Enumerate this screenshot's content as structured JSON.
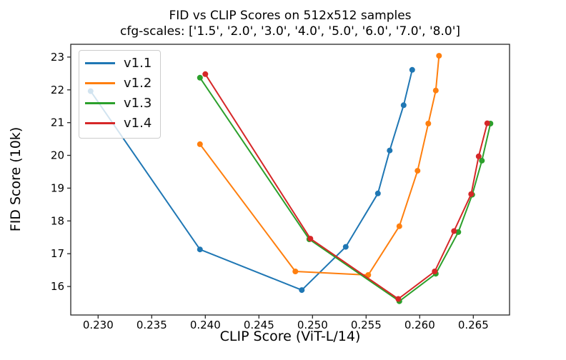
{
  "figure": {
    "title": "FID vs CLIP Scores on 512x512 samples",
    "subtitle": "cfg-scales: ['1.5', '2.0', '3.0', '4.0', '5.0', '6.0', '7.0', '8.0']",
    "xlabel": "CLIP Score (ViT-L/14)",
    "ylabel": "FID Score (10k)"
  },
  "chart_data": {
    "type": "line",
    "title": "FID vs CLIP Scores on 512x512 samples",
    "subtitle": "cfg-scales: ['1.5', '2.0', '3.0', '4.0', '5.0', '6.0', '7.0', '8.0']",
    "xlabel": "CLIP Score (ViT-L/14)",
    "ylabel": "FID Score (10k)",
    "grid": false,
    "legend_position": "upper-left",
    "cfg_scales": [
      "1.5",
      "2.0",
      "3.0",
      "4.0",
      "5.0",
      "6.0",
      "7.0",
      "8.0"
    ],
    "xlim": [
      0.22745,
      0.26838
    ],
    "ylim": [
      15.13,
      23.39
    ],
    "x_ticks": [
      0.23,
      0.235,
      0.24,
      0.245,
      0.25,
      0.255,
      0.26,
      0.265
    ],
    "x_tick_labels": [
      "0.230",
      "0.235",
      "0.240",
      "0.245",
      "0.250",
      "0.255",
      "0.260",
      "0.265"
    ],
    "y_ticks": [
      16,
      17,
      18,
      19,
      20,
      21,
      22,
      23
    ],
    "y_tick_labels": [
      "16",
      "17",
      "18",
      "19",
      "20",
      "21",
      "22",
      "23"
    ],
    "axis_color": "#262626",
    "series": [
      {
        "name": "v1.1",
        "color": "#1f77b4",
        "points": [
          [
            0.2293,
            21.96
          ],
          [
            0.2395,
            17.13
          ],
          [
            0.249,
            15.89
          ],
          [
            0.2531,
            17.21
          ],
          [
            0.2561,
            18.84
          ],
          [
            0.2572,
            20.15
          ],
          [
            0.2585,
            21.53
          ],
          [
            0.2593,
            22.61
          ]
        ]
      },
      {
        "name": "v1.2",
        "color": "#ff7f0e",
        "points": [
          [
            0.2395,
            20.34
          ],
          [
            0.2484,
            16.46
          ],
          [
            0.2552,
            16.35
          ],
          [
            0.2581,
            17.84
          ],
          [
            0.2598,
            19.53
          ],
          [
            0.2608,
            20.97
          ],
          [
            0.2615,
            21.98
          ],
          [
            0.2618,
            23.04
          ]
        ]
      },
      {
        "name": "v1.3",
        "color": "#2ca02c",
        "points": [
          [
            0.2395,
            22.37
          ],
          [
            0.2497,
            17.44
          ],
          [
            0.2581,
            15.55
          ],
          [
            0.2615,
            16.39
          ],
          [
            0.2636,
            17.66
          ],
          [
            0.2649,
            18.8
          ],
          [
            0.2658,
            19.84
          ],
          [
            0.2666,
            20.97
          ]
        ]
      },
      {
        "name": "v1.4",
        "color": "#d62728",
        "points": [
          [
            0.24,
            22.48
          ],
          [
            0.2498,
            17.46
          ],
          [
            0.258,
            15.62
          ],
          [
            0.2614,
            16.46
          ],
          [
            0.2632,
            17.69
          ],
          [
            0.2648,
            18.82
          ],
          [
            0.2655,
            19.97
          ],
          [
            0.2663,
            20.98
          ]
        ]
      }
    ]
  }
}
